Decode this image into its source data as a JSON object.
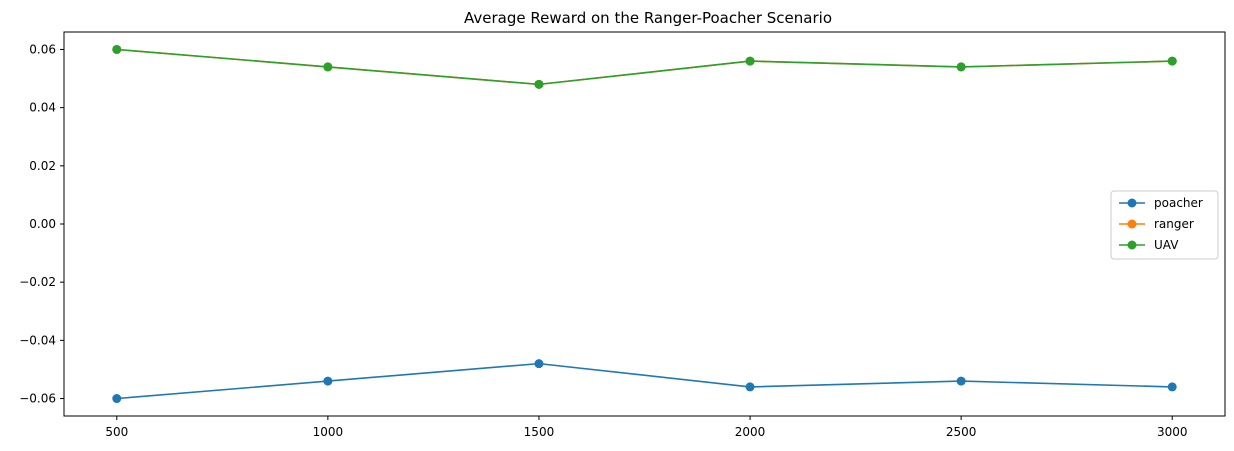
{
  "chart_data": {
    "type": "line",
    "title": "Average Reward on the Ranger-Poacher Scenario",
    "xlabel": "",
    "ylabel": "",
    "x": [
      500,
      1000,
      1500,
      2000,
      2500,
      3000
    ],
    "x_ticks": [
      "500",
      "1000",
      "1500",
      "2000",
      "2500",
      "3000"
    ],
    "y_ticks": [
      {
        "value": 0.06,
        "label": "0.06"
      },
      {
        "value": 0.04,
        "label": "0.04"
      },
      {
        "value": 0.02,
        "label": "0.02"
      },
      {
        "value": 0.0,
        "label": "0.00"
      },
      {
        "value": -0.02,
        "label": "−0.02"
      },
      {
        "value": -0.04,
        "label": "−0.04"
      },
      {
        "value": -0.06,
        "label": "−0.06"
      }
    ],
    "xlim": [
      375,
      3125
    ],
    "ylim": [
      -0.066,
      0.066
    ],
    "grid": false,
    "legend_position": "center-right",
    "series": [
      {
        "name": "poacher",
        "color": "#1f77b4",
        "values": [
          -0.06,
          -0.054,
          -0.048,
          -0.056,
          -0.054,
          -0.056
        ]
      },
      {
        "name": "ranger",
        "color": "#ff7f0e",
        "values": [
          0.06,
          0.054,
          0.048,
          0.056,
          0.054,
          0.056
        ]
      },
      {
        "name": "UAV",
        "color": "#2ca02c",
        "values": [
          0.06,
          0.054,
          0.048,
          0.056,
          0.054,
          0.056
        ]
      }
    ]
  }
}
